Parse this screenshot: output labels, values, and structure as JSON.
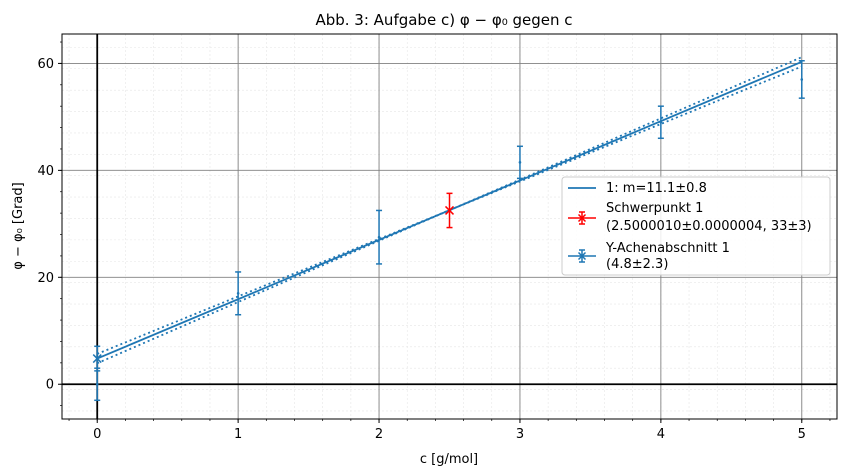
{
  "chart_data": {
    "type": "scatter",
    "title": "Abb. 3: Aufgabe c) φ − φ₀ gegen c",
    "xlabel": "c [g/mol]",
    "ylabel": "φ − φ₀ [Grad]",
    "xlim": [
      -0.25,
      5.25
    ],
    "ylim": [
      -6.5,
      65.5
    ],
    "xticks": [
      0,
      1,
      2,
      3,
      4,
      5
    ],
    "xtick_labels": [
      "0",
      "1",
      "2",
      "3",
      "4",
      "5"
    ],
    "yticks": [
      0,
      20,
      40,
      60
    ],
    "ytick_labels": [
      "0",
      "20",
      "40",
      "60"
    ],
    "grid": true,
    "minor_grid": true,
    "legend_position": "center-right",
    "measurements": {
      "color": "#1f77b4",
      "points": [
        {
          "x": 0,
          "y": 0,
          "err": 3
        },
        {
          "x": 1,
          "y": 17,
          "err": 4
        },
        {
          "x": 2,
          "y": 27.5,
          "err": 5
        },
        {
          "x": 3,
          "y": 41.5,
          "err": 3
        },
        {
          "x": 4,
          "y": 49,
          "err": 3
        },
        {
          "x": 5,
          "y": 57,
          "err": 3.5
        }
      ]
    },
    "fit": {
      "label": "1: m=11.1±0.8",
      "color": "#1f77b4",
      "slope": 11.1,
      "intercept": 4.8,
      "x_range": [
        0,
        5
      ],
      "band_pivot": [
        2.5,
        32.55
      ],
      "band_slope_err": 0.35,
      "band_intercept_err": 1.8
    },
    "schwerpunkt": {
      "label": "Schwerpunkt 1",
      "label2": "(2.5000010±0.0000004, 33±3)",
      "color": "#ff0000",
      "x": 2.5,
      "y": 32.5,
      "yerr": 3.2
    },
    "intercept_point": {
      "label": "Y-Achenabschnitt 1",
      "label2": "(4.8±2.3)",
      "color": "#1f77b4",
      "x": 0,
      "y": 4.8,
      "yerr": 2.3
    }
  }
}
